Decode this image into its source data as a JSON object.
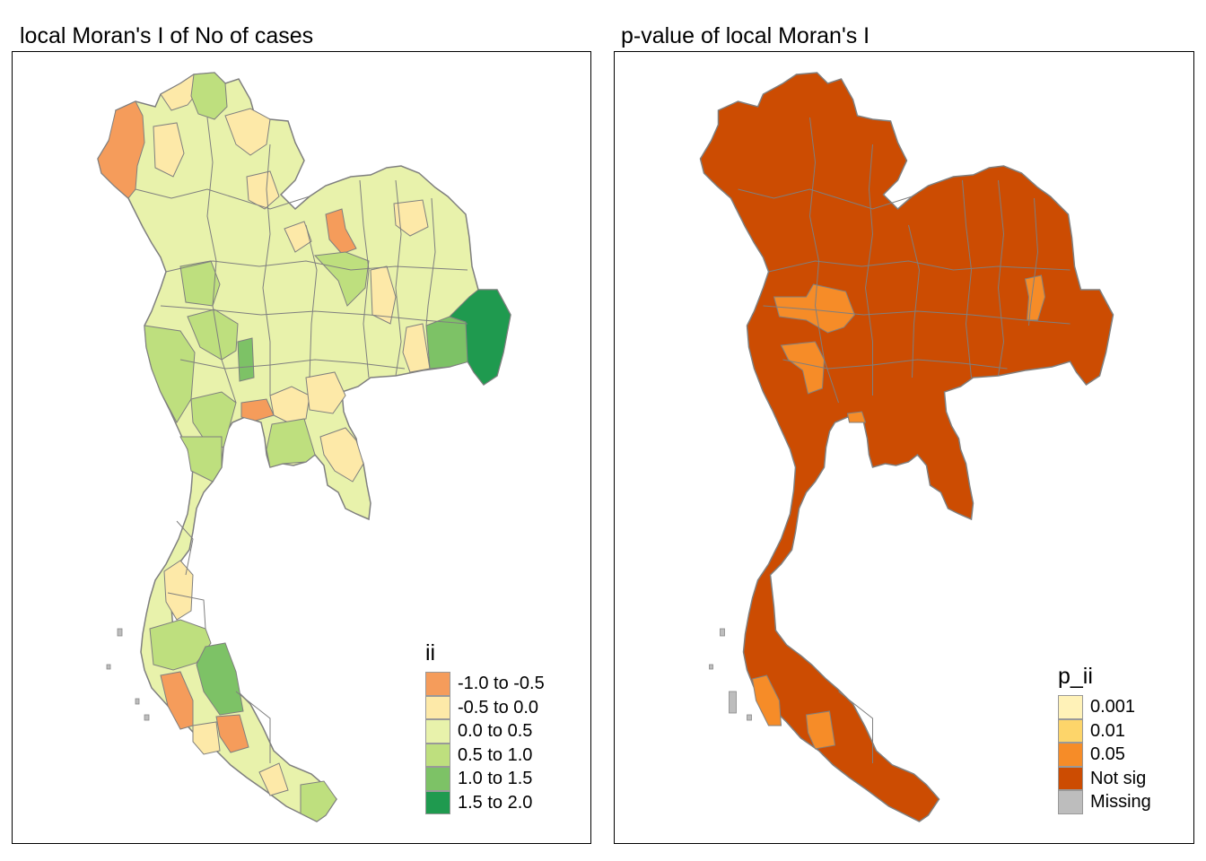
{
  "panels": {
    "left": {
      "title": "local Moran's I of No of cases",
      "legend_title": "ii",
      "legend_items": [
        {
          "label": "-1.0 to -0.5",
          "color": "#f59c5b"
        },
        {
          "label": "-0.5 to 0.0",
          "color": "#fde9a8"
        },
        {
          "label": "0.0 to 0.5",
          "color": "#e8f2ab"
        },
        {
          "label": "0.5 to 1.0",
          "color": "#bedf7e"
        },
        {
          "label": "1.0 to 1.5",
          "color": "#7dc266"
        },
        {
          "label": "1.5 to 2.0",
          "color": "#1f9a4f"
        }
      ]
    },
    "right": {
      "title": "p-value of local Moran's I",
      "legend_title": "p_ii",
      "legend_items": [
        {
          "label": "0.001",
          "color": "#fff2b8"
        },
        {
          "label": "0.01",
          "color": "#fdd56a"
        },
        {
          "label": "0.05",
          "color": "#f68c28"
        },
        {
          "label": "Not sig",
          "color": "#cc4c02"
        },
        {
          "label": "Missing",
          "color": "#bdbdbd"
        }
      ]
    }
  },
  "colors": {
    "boundary": "#7f7f7f",
    "frame": "#000000",
    "background": "#ffffff"
  }
}
